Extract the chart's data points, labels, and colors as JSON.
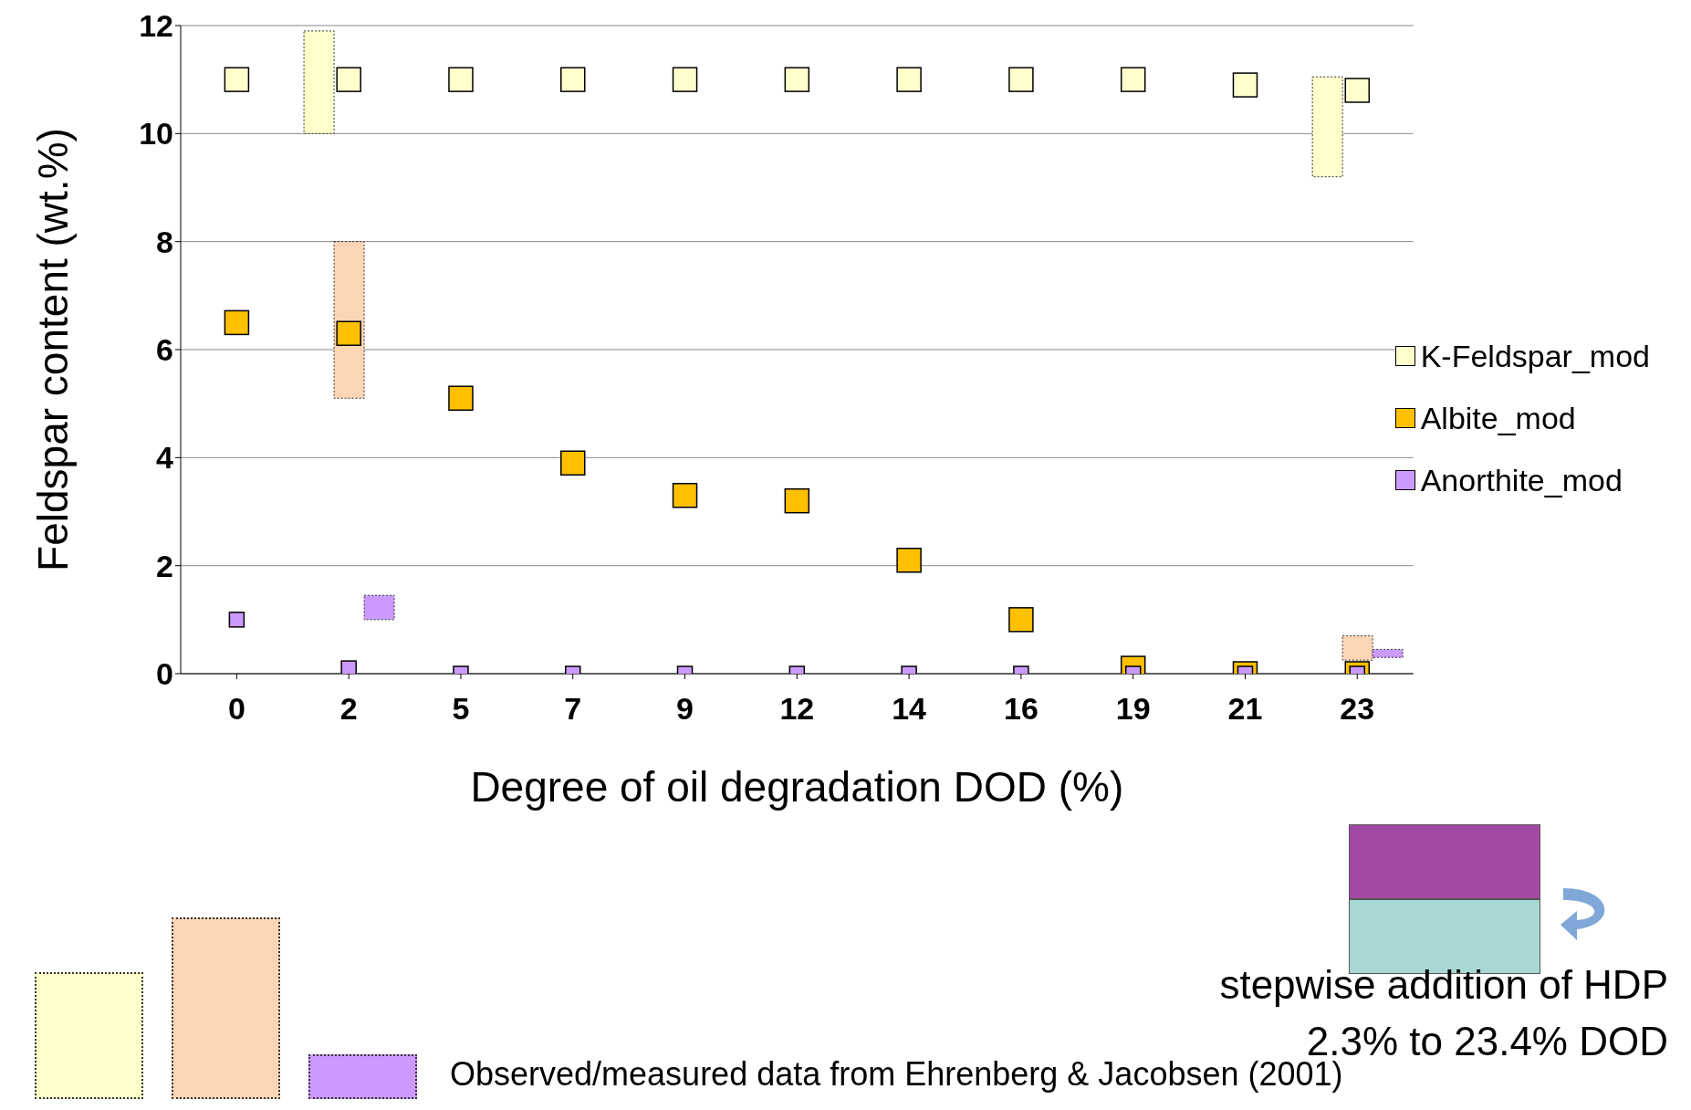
{
  "chart_data": {
    "type": "scatter",
    "xlabel": "Degree of oil degradation DOD (%)",
    "ylabel": "Feldspar content (wt.%)",
    "categories": [
      "0",
      "2",
      "5",
      "7",
      "9",
      "12",
      "14",
      "16",
      "19",
      "21",
      "23"
    ],
    "ylim": [
      0,
      12
    ],
    "yticks": [
      0,
      2,
      4,
      6,
      8,
      10,
      12
    ],
    "grid": "y",
    "legend": "right",
    "marker": "square",
    "series": [
      {
        "type": "bar",
        "color": "#ffffcc",
        "base": [
          null,
          10,
          null,
          null,
          null,
          null,
          null,
          null,
          null,
          null,
          9.2
        ],
        "values": [
          null,
          1.9,
          null,
          null,
          null,
          null,
          null,
          null,
          null,
          null,
          1.85
        ]
      },
      {
        "type": "bar",
        "color": "#fcd5b5",
        "base": [
          null,
          5.1,
          null,
          null,
          null,
          null,
          null,
          null,
          null,
          null,
          0.25
        ],
        "values": [
          null,
          2.9,
          null,
          null,
          null,
          null,
          null,
          null,
          null,
          null,
          0.45
        ]
      },
      {
        "type": "bar",
        "color": "#cc99ff",
        "base": [
          null,
          1,
          null,
          null,
          null,
          null,
          null,
          null,
          null,
          null,
          0.3
        ],
        "values": [
          null,
          0.45,
          null,
          null,
          null,
          null,
          null,
          null,
          null,
          null,
          0.15
        ]
      },
      {
        "name": "K-Feldspar_mod",
        "color": "#ffffcc",
        "values": [
          11,
          11,
          11,
          11,
          11,
          11,
          11,
          11,
          11,
          10.9,
          10.8
        ]
      },
      {
        "name": "Albite_mod",
        "color": "#ffc000",
        "values": [
          6.5,
          6.3,
          5.1,
          3.9,
          3.3,
          3.2,
          2.1,
          1.0,
          0.1,
          0,
          0
        ]
      },
      {
        "name": "Anorthite_mod",
        "color": "#cc99ff",
        "values": [
          1.0,
          0.1,
          0,
          0,
          0,
          0,
          0,
          0,
          0,
          0,
          0
        ]
      }
    ],
    "annotations": [
      "stepwise addition of HDP",
      "2.3% to 23.4% DOD",
      "Observed/measured data from Ehrenberg & Jacobsen (2001)"
    ]
  }
}
